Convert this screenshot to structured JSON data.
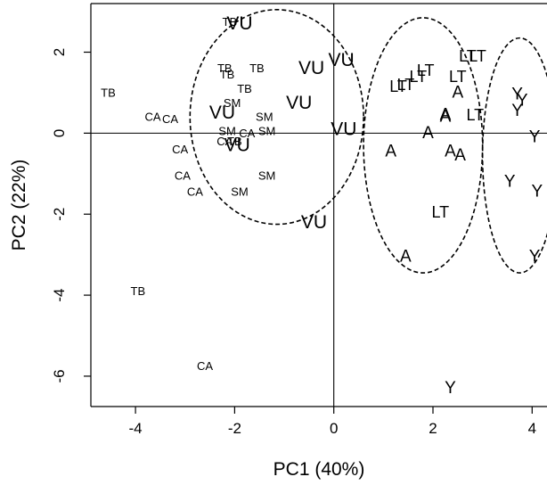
{
  "chart_data": {
    "type": "scatter",
    "title": "",
    "xlabel": "PC1 (40%)",
    "ylabel": "PC2 (22%)",
    "xlim": [
      -4.9,
      4.3
    ],
    "ylim": [
      -6.75,
      3.2
    ],
    "xticks": [
      -4,
      -2,
      0,
      2,
      4
    ],
    "yticks": [
      -6,
      -4,
      -2,
      0,
      2
    ],
    "xtick_labels": [
      "-4",
      "-2",
      "0",
      "2",
      "4"
    ],
    "ytick_labels": [
      "-6",
      "-4",
      "-2",
      "0",
      "2"
    ],
    "reference_lines": {
      "x": 0,
      "y": 0
    },
    "points": [
      {
        "label": "TB",
        "x": -2.1,
        "y": 2.75
      },
      {
        "label": "VU",
        "x": -1.9,
        "y": 2.7
      },
      {
        "label": "TB",
        "x": -2.2,
        "y": 1.6
      },
      {
        "label": "TB",
        "x": -2.15,
        "y": 1.45
      },
      {
        "label": "TB",
        "x": -1.55,
        "y": 1.6
      },
      {
        "label": "TB",
        "x": -1.8,
        "y": 1.1
      },
      {
        "label": "VU",
        "x": -0.45,
        "y": 1.6
      },
      {
        "label": "VU",
        "x": 0.15,
        "y": 1.8
      },
      {
        "label": "SM",
        "x": -2.05,
        "y": 0.75
      },
      {
        "label": "VU",
        "x": -2.25,
        "y": 0.5
      },
      {
        "label": "SM",
        "x": -1.4,
        "y": 0.4
      },
      {
        "label": "VU",
        "x": -0.7,
        "y": 0.75
      },
      {
        "label": "SM",
        "x": -2.15,
        "y": 0.05
      },
      {
        "label": "CA",
        "x": -2.2,
        "y": -0.2
      },
      {
        "label": "TB",
        "x": -2.0,
        "y": -0.2
      },
      {
        "label": "CA",
        "x": -1.75,
        "y": 0.0
      },
      {
        "label": "SM",
        "x": -1.35,
        "y": 0.05
      },
      {
        "label": "VU",
        "x": -1.95,
        "y": -0.3
      },
      {
        "label": "VU",
        "x": 0.2,
        "y": 0.1
      },
      {
        "label": "TB",
        "x": -4.55,
        "y": 1.0
      },
      {
        "label": "CA",
        "x": -3.65,
        "y": 0.4
      },
      {
        "label": "CA",
        "x": -3.3,
        "y": 0.35
      },
      {
        "label": "CA",
        "x": -3.1,
        "y": -0.4
      },
      {
        "label": "CA",
        "x": -3.05,
        "y": -1.05
      },
      {
        "label": "CA",
        "x": -2.8,
        "y": -1.45
      },
      {
        "label": "SM",
        "x": -1.9,
        "y": -1.45
      },
      {
        "label": "SM",
        "x": -1.35,
        "y": -1.05
      },
      {
        "label": "VU",
        "x": -0.4,
        "y": -2.2
      },
      {
        "label": "TB",
        "x": -3.95,
        "y": -3.9
      },
      {
        "label": "CA",
        "x": -2.6,
        "y": -5.75
      },
      {
        "label": "LT",
        "x": 1.85,
        "y": 1.55
      },
      {
        "label": "LT",
        "x": 1.7,
        "y": 1.4
      },
      {
        "label": "LT",
        "x": 1.45,
        "y": 1.2
      },
      {
        "label": "LT",
        "x": 1.3,
        "y": 1.15
      },
      {
        "label": "LT",
        "x": 2.7,
        "y": 1.9
      },
      {
        "label": "LT",
        "x": 2.9,
        "y": 1.9
      },
      {
        "label": "LT",
        "x": 2.5,
        "y": 1.4
      },
      {
        "label": "A",
        "x": 2.5,
        "y": 1.0
      },
      {
        "label": "A",
        "x": 2.25,
        "y": 0.45
      },
      {
        "label": "A",
        "x": 2.25,
        "y": 0.4
      },
      {
        "label": "LT",
        "x": 2.85,
        "y": 0.45
      },
      {
        "label": "A",
        "x": 1.9,
        "y": 0.0
      },
      {
        "label": "A",
        "x": 1.15,
        "y": -0.45
      },
      {
        "label": "A",
        "x": 2.55,
        "y": -0.55
      },
      {
        "label": "A",
        "x": 2.35,
        "y": -0.45
      },
      {
        "label": "LT",
        "x": 2.15,
        "y": -1.95
      },
      {
        "label": "A",
        "x": 1.45,
        "y": -3.05
      },
      {
        "label": "Y",
        "x": 3.7,
        "y": 0.95
      },
      {
        "label": "Y",
        "x": 3.8,
        "y": 0.8
      },
      {
        "label": "Y",
        "x": 3.7,
        "y": 0.55
      },
      {
        "label": "Y",
        "x": 4.05,
        "y": -0.1
      },
      {
        "label": "Y",
        "x": 3.55,
        "y": -1.2
      },
      {
        "label": "Y",
        "x": 4.1,
        "y": -1.45
      },
      {
        "label": "Y",
        "x": 4.05,
        "y": -3.05
      },
      {
        "label": "Y",
        "x": 2.35,
        "y": -6.3
      }
    ],
    "ellipses": [
      {
        "cx": -1.15,
        "cy": 0.4,
        "rx": 1.75,
        "ry": 2.65
      },
      {
        "cx": 1.8,
        "cy": -0.3,
        "rx": 1.2,
        "ry": 3.15
      },
      {
        "cx": 3.75,
        "cy": -0.55,
        "rx": 0.75,
        "ry": 2.9
      }
    ]
  }
}
